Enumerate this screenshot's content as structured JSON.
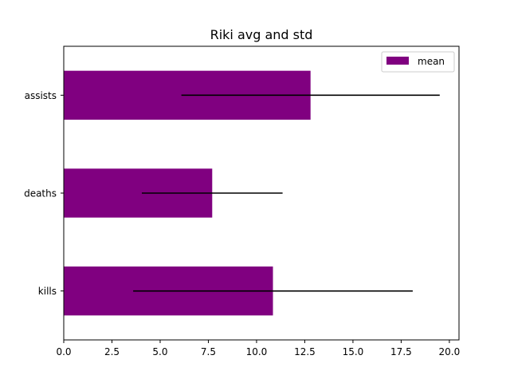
{
  "chart_data": {
    "type": "bar",
    "orientation": "horizontal",
    "title": "Riki avg and std",
    "xlabel": "",
    "ylabel": "",
    "categories": [
      "kills",
      "deaths",
      "assists"
    ],
    "series": [
      {
        "name": "mean",
        "values": [
          10.85,
          7.7,
          12.8
        ],
        "error": [
          7.25,
          3.65,
          6.7
        ],
        "color": "#800080"
      }
    ],
    "xlim": [
      0,
      20.5
    ],
    "xticks": [
      0.0,
      2.5,
      5.0,
      7.5,
      10.0,
      12.5,
      15.0,
      17.5,
      20.0
    ],
    "xtick_labels": [
      "0.0",
      "2.5",
      "5.0",
      "7.5",
      "10.0",
      "12.5",
      "15.0",
      "17.5",
      "20.0"
    ],
    "grid": false,
    "legend": {
      "position": "top-right",
      "entries": [
        "mean"
      ]
    },
    "error_bar_color": "#000000"
  }
}
